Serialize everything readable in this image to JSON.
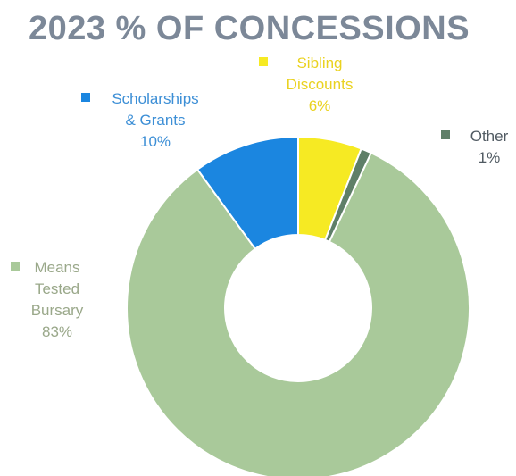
{
  "chart_data": {
    "type": "pie",
    "variant": "donut",
    "title": "2023 % OF CONCESSIONS",
    "colors": {
      "title": "#7c8898",
      "means_tested": "#a9c99a",
      "scholarships": "#1b86e0",
      "sibling": "#f6ea23",
      "other": "#5f7f68"
    },
    "slices": [
      {
        "key": "sibling",
        "label_lines": [
          "Sibling",
          "Discounts",
          "6%"
        ],
        "value": 6,
        "color": "#f6ea23",
        "label_color": "#ead21f"
      },
      {
        "key": "other",
        "label_lines": [
          "Other",
          "1%"
        ],
        "value": 1,
        "color": "#5f7f68",
        "label_color": "#505a62"
      },
      {
        "key": "means_tested",
        "label_lines": [
          "Means",
          "Tested",
          "Bursary",
          "83%"
        ],
        "value": 83,
        "color": "#a9c99a",
        "label_color": "#9aa88a"
      },
      {
        "key": "scholarships",
        "label_lines": [
          "Scholarships",
          "& Grants",
          "10%"
        ],
        "value": 10,
        "color": "#1b86e0",
        "label_color": "#3d8fd6"
      }
    ]
  }
}
